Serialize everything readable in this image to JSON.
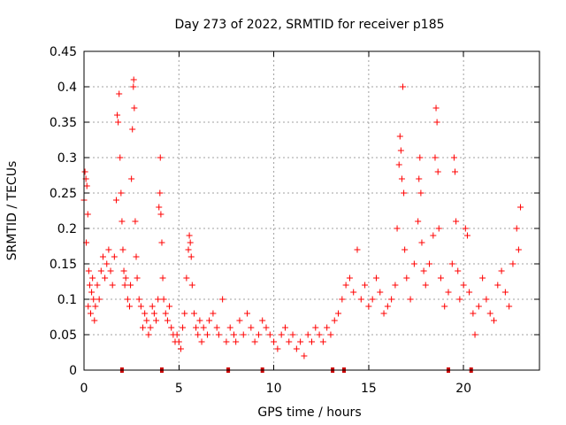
{
  "chart_data": {
    "type": "scatter",
    "title": "Day 273 of 2022, SRMTID for receiver p185",
    "xlabel": "GPS time / hours",
    "ylabel": "SRMTID / TECUs",
    "xlim": [
      0,
      24
    ],
    "ylim": [
      0,
      0.45
    ],
    "xticks": [
      0,
      5,
      10,
      15,
      20
    ],
    "xtick_labels": [
      "0",
      "5",
      "10",
      "15",
      "20"
    ],
    "yticks": [
      0,
      0.05,
      0.1,
      0.15,
      0.2,
      0.25,
      0.3,
      0.35,
      0.4,
      0.45
    ],
    "ytick_labels": [
      "0",
      "0.05",
      "0.1",
      "0.15",
      "0.2",
      "0.25",
      "0.3",
      "0.35",
      "0.4",
      "0.45"
    ],
    "grid": true,
    "marker": "+",
    "marker_color": "#ff0000",
    "axis_marker_color": "#cc0000",
    "series": [
      {
        "name": "SRMTID",
        "points": [
          [
            0.0,
            0.24
          ],
          [
            0.05,
            0.28
          ],
          [
            0.1,
            0.27
          ],
          [
            0.12,
            0.18
          ],
          [
            0.15,
            0.26
          ],
          [
            0.2,
            0.22
          ],
          [
            0.22,
            0.09
          ],
          [
            0.25,
            0.14
          ],
          [
            0.3,
            0.12
          ],
          [
            0.35,
            0.08
          ],
          [
            0.4,
            0.11
          ],
          [
            0.45,
            0.13
          ],
          [
            0.5,
            0.1
          ],
          [
            0.55,
            0.07
          ],
          [
            0.6,
            0.09
          ],
          [
            0.7,
            0.12
          ],
          [
            0.8,
            0.1
          ],
          [
            0.9,
            0.14
          ],
          [
            1.0,
            0.16
          ],
          [
            1.1,
            0.13
          ],
          [
            1.2,
            0.15
          ],
          [
            1.3,
            0.17
          ],
          [
            1.4,
            0.14
          ],
          [
            1.5,
            0.12
          ],
          [
            1.6,
            0.16
          ],
          [
            1.7,
            0.24
          ],
          [
            1.75,
            0.36
          ],
          [
            1.8,
            0.35
          ],
          [
            1.85,
            0.39
          ],
          [
            1.9,
            0.3
          ],
          [
            1.95,
            0.25
          ],
          [
            2.0,
            0.21
          ],
          [
            2.05,
            0.17
          ],
          [
            2.1,
            0.14
          ],
          [
            2.15,
            0.12
          ],
          [
            2.2,
            0.13
          ],
          [
            2.3,
            0.1
          ],
          [
            2.4,
            0.09
          ],
          [
            2.45,
            0.12
          ],
          [
            2.5,
            0.27
          ],
          [
            2.55,
            0.34
          ],
          [
            2.6,
            0.4
          ],
          [
            2.62,
            0.41
          ],
          [
            2.65,
            0.37
          ],
          [
            2.7,
            0.21
          ],
          [
            2.75,
            0.16
          ],
          [
            2.8,
            0.13
          ],
          [
            2.9,
            0.1
          ],
          [
            3.0,
            0.09
          ],
          [
            3.1,
            0.06
          ],
          [
            3.2,
            0.08
          ],
          [
            3.3,
            0.07
          ],
          [
            3.4,
            0.05
          ],
          [
            3.5,
            0.06
          ],
          [
            3.6,
            0.09
          ],
          [
            3.7,
            0.08
          ],
          [
            3.8,
            0.07
          ],
          [
            3.9,
            0.1
          ],
          [
            3.95,
            0.23
          ],
          [
            4.0,
            0.25
          ],
          [
            4.02,
            0.3
          ],
          [
            4.05,
            0.22
          ],
          [
            4.1,
            0.18
          ],
          [
            4.15,
            0.13
          ],
          [
            4.2,
            0.1
          ],
          [
            4.3,
            0.08
          ],
          [
            4.4,
            0.07
          ],
          [
            4.5,
            0.09
          ],
          [
            4.6,
            0.06
          ],
          [
            4.7,
            0.05
          ],
          [
            4.8,
            0.04
          ],
          [
            4.9,
            0.05
          ],
          [
            5.0,
            0.04
          ],
          [
            5.1,
            0.03
          ],
          [
            5.2,
            0.06
          ],
          [
            5.3,
            0.08
          ],
          [
            5.4,
            0.13
          ],
          [
            5.5,
            0.17
          ],
          [
            5.55,
            0.19
          ],
          [
            5.6,
            0.18
          ],
          [
            5.65,
            0.16
          ],
          [
            5.7,
            0.12
          ],
          [
            5.8,
            0.08
          ],
          [
            5.9,
            0.06
          ],
          [
            6.0,
            0.05
          ],
          [
            6.1,
            0.07
          ],
          [
            6.2,
            0.04
          ],
          [
            6.3,
            0.06
          ],
          [
            6.5,
            0.05
          ],
          [
            6.6,
            0.07
          ],
          [
            6.8,
            0.08
          ],
          [
            7.0,
            0.06
          ],
          [
            7.1,
            0.05
          ],
          [
            7.3,
            0.1
          ],
          [
            7.5,
            0.04
          ],
          [
            7.7,
            0.06
          ],
          [
            7.9,
            0.05
          ],
          [
            8.0,
            0.04
          ],
          [
            8.2,
            0.07
          ],
          [
            8.4,
            0.05
          ],
          [
            8.6,
            0.08
          ],
          [
            8.8,
            0.06
          ],
          [
            9.0,
            0.04
          ],
          [
            9.2,
            0.05
          ],
          [
            9.4,
            0.07
          ],
          [
            9.6,
            0.06
          ],
          [
            9.8,
            0.05
          ],
          [
            10.0,
            0.04
          ],
          [
            10.2,
            0.03
          ],
          [
            10.4,
            0.05
          ],
          [
            10.6,
            0.06
          ],
          [
            10.8,
            0.04
          ],
          [
            11.0,
            0.05
          ],
          [
            11.2,
            0.03
          ],
          [
            11.4,
            0.04
          ],
          [
            11.6,
            0.02
          ],
          [
            11.8,
            0.05
          ],
          [
            12.0,
            0.04
          ],
          [
            12.2,
            0.06
          ],
          [
            12.4,
            0.05
          ],
          [
            12.6,
            0.04
          ],
          [
            12.8,
            0.06
          ],
          [
            13.0,
            0.05
          ],
          [
            13.2,
            0.07
          ],
          [
            13.4,
            0.08
          ],
          [
            13.6,
            0.1
          ],
          [
            13.8,
            0.12
          ],
          [
            14.0,
            0.13
          ],
          [
            14.2,
            0.11
          ],
          [
            14.4,
            0.17
          ],
          [
            14.6,
            0.1
          ],
          [
            14.8,
            0.12
          ],
          [
            15.0,
            0.09
          ],
          [
            15.2,
            0.1
          ],
          [
            15.4,
            0.13
          ],
          [
            15.6,
            0.11
          ],
          [
            15.8,
            0.08
          ],
          [
            16.0,
            0.09
          ],
          [
            16.2,
            0.1
          ],
          [
            16.4,
            0.12
          ],
          [
            16.5,
            0.2
          ],
          [
            16.6,
            0.29
          ],
          [
            16.65,
            0.33
          ],
          [
            16.7,
            0.31
          ],
          [
            16.75,
            0.27
          ],
          [
            16.8,
            0.4
          ],
          [
            16.85,
            0.25
          ],
          [
            16.9,
            0.17
          ],
          [
            17.0,
            0.13
          ],
          [
            17.2,
            0.1
          ],
          [
            17.4,
            0.15
          ],
          [
            17.6,
            0.21
          ],
          [
            17.65,
            0.27
          ],
          [
            17.7,
            0.3
          ],
          [
            17.75,
            0.25
          ],
          [
            17.8,
            0.18
          ],
          [
            17.9,
            0.14
          ],
          [
            18.0,
            0.12
          ],
          [
            18.2,
            0.15
          ],
          [
            18.4,
            0.19
          ],
          [
            18.5,
            0.3
          ],
          [
            18.55,
            0.37
          ],
          [
            18.6,
            0.35
          ],
          [
            18.65,
            0.28
          ],
          [
            18.7,
            0.2
          ],
          [
            18.8,
            0.13
          ],
          [
            19.0,
            0.09
          ],
          [
            19.2,
            0.11
          ],
          [
            19.4,
            0.15
          ],
          [
            19.5,
            0.3
          ],
          [
            19.55,
            0.28
          ],
          [
            19.6,
            0.21
          ],
          [
            19.7,
            0.14
          ],
          [
            19.8,
            0.1
          ],
          [
            20.0,
            0.12
          ],
          [
            20.1,
            0.2
          ],
          [
            20.2,
            0.19
          ],
          [
            20.3,
            0.11
          ],
          [
            20.5,
            0.08
          ],
          [
            20.6,
            0.05
          ],
          [
            20.8,
            0.09
          ],
          [
            21.0,
            0.13
          ],
          [
            21.2,
            0.1
          ],
          [
            21.4,
            0.08
          ],
          [
            21.6,
            0.07
          ],
          [
            21.8,
            0.12
          ],
          [
            22.0,
            0.14
          ],
          [
            22.2,
            0.11
          ],
          [
            22.4,
            0.09
          ],
          [
            22.6,
            0.15
          ],
          [
            22.8,
            0.2
          ],
          [
            22.9,
            0.17
          ],
          [
            23.0,
            0.23
          ]
        ]
      }
    ],
    "data_gaps_at_hours": [
      2.0,
      4.1,
      7.6,
      9.4,
      13.1,
      13.7,
      19.2,
      20.4
    ]
  }
}
